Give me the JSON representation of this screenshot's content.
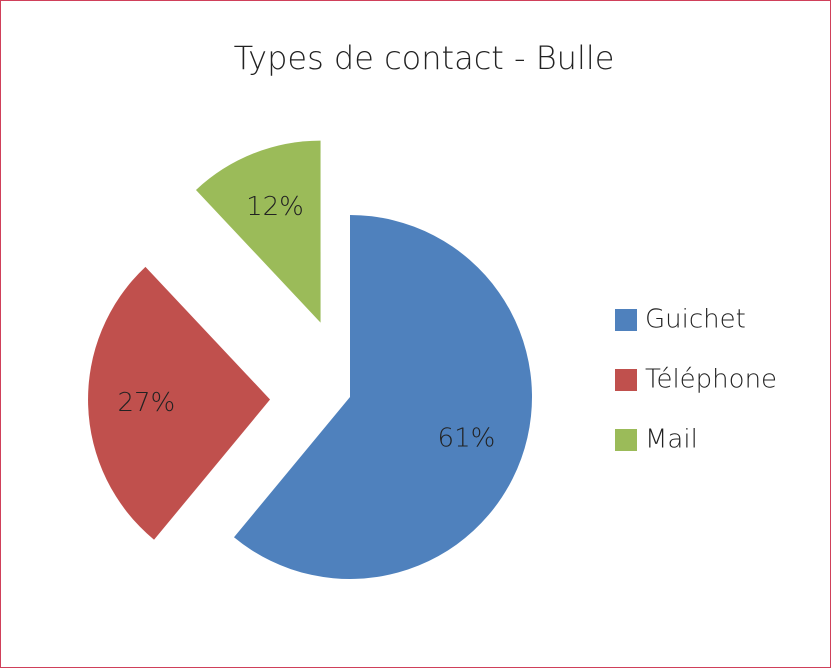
{
  "chart_data": {
    "type": "pie",
    "title": "Types de contact - Bulle",
    "categories": [
      "Guichet",
      "Téléphone",
      "Mail"
    ],
    "values": [
      61,
      27,
      12
    ],
    "value_labels": [
      "61%",
      "27%",
      "12%"
    ],
    "colors": [
      "#4f81bd",
      "#c0504d",
      "#9bbb59"
    ],
    "legend": "right"
  }
}
